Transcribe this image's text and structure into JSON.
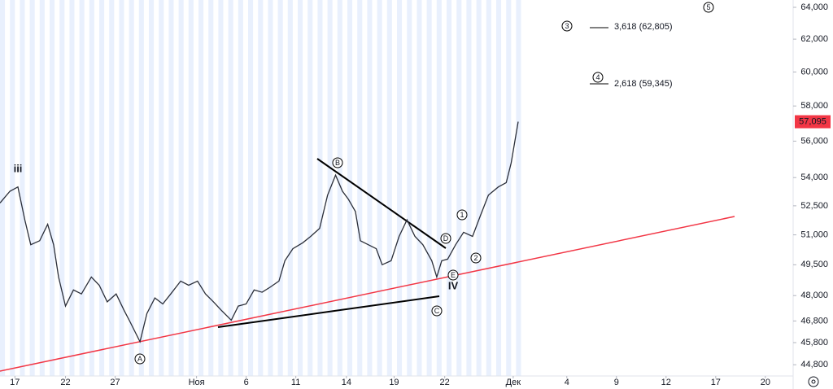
{
  "chart_data": {
    "type": "line",
    "log_scale": true,
    "color": "#2a2e39",
    "x": [
      -1.5,
      -0.5,
      0.3,
      1,
      1.6,
      2.5,
      3.3,
      3.9,
      4.4,
      5.1,
      5.9,
      6.7,
      7.7,
      8.5,
      9.3,
      10.2,
      11,
      11.6,
      12.6,
      13.3,
      14.1,
      14.9,
      15.7,
      16.7,
      17.5,
      18.4,
      19.2,
      20,
      20.8,
      21.8,
      22.5,
      23.3,
      24.1,
      24.9,
      25.7,
      26.6,
      27.2,
      28,
      29,
      29.8,
      30.7,
      31.5,
      32.3,
      33,
      33.6,
      34.3,
      34.8,
      35.6,
      36.4,
      37,
      37.9,
      38.7,
      39.5,
      40.3,
      41.1,
      42,
      42.5,
      43,
      43.6,
      44.4,
      45.2,
      46.1,
      46.9,
      47.7,
      48.7,
      49.5,
      50,
      50.7
    ],
    "values": [
      52650,
      53270,
      53500,
      51770,
      50500,
      50700,
      51540,
      50500,
      48900,
      47500,
      48270,
      48080,
      48900,
      48500,
      47700,
      48080,
      47300,
      46760,
      45840,
      47150,
      47890,
      47600,
      48080,
      48700,
      48500,
      48700,
      48080,
      47700,
      47300,
      46840,
      47500,
      47600,
      48270,
      48160,
      48400,
      48700,
      49700,
      50300,
      50600,
      50920,
      51330,
      53060,
      54130,
      53270,
      52840,
      52200,
      50700,
      50500,
      50300,
      49500,
      49700,
      50920,
      51770,
      50920,
      50500,
      49700,
      48900,
      49700,
      49780,
      50500,
      51130,
      50920,
      51990,
      53060,
      53500,
      53730,
      54800,
      57100
    ],
    "last_price": {
      "value": 57095,
      "label": "57,095"
    },
    "xlim": [
      -1.5,
      78.4
    ],
    "xticks": [
      {
        "value": 0,
        "label": "17"
      },
      {
        "value": 5.1,
        "label": "22"
      },
      {
        "value": 10.1,
        "label": "27"
      },
      {
        "value": 18.3,
        "label": "Ноя"
      },
      {
        "value": 23.3,
        "label": "6"
      },
      {
        "value": 28.3,
        "label": "11"
      },
      {
        "value": 33.4,
        "label": "14"
      },
      {
        "value": 38.2,
        "label": "19"
      },
      {
        "value": 43.3,
        "label": "22"
      },
      {
        "value": 50.2,
        "label": "Дек"
      },
      {
        "value": 55.6,
        "label": "4"
      },
      {
        "value": 60.6,
        "label": "9"
      },
      {
        "value": 65.6,
        "label": "12"
      },
      {
        "value": 70.6,
        "label": "17"
      },
      {
        "value": 75.6,
        "label": "20"
      }
    ],
    "ylim": [
      44300,
      64470
    ],
    "yticks": [
      {
        "value": 44800,
        "label": "44,800"
      },
      {
        "value": 45800,
        "label": "45,800"
      },
      {
        "value": 46800,
        "label": "46,800"
      },
      {
        "value": 48000,
        "label": "48,000"
      },
      {
        "value": 49500,
        "label": "49,500"
      },
      {
        "value": 51000,
        "label": "51,000"
      },
      {
        "value": 52500,
        "label": "52,500"
      },
      {
        "value": 54000,
        "label": "54,000"
      },
      {
        "value": 56000,
        "label": "56,000"
      },
      {
        "value": 58000,
        "label": "58,000"
      },
      {
        "value": 60000,
        "label": "60,000"
      },
      {
        "value": 62000,
        "label": "62,000"
      },
      {
        "value": 64000,
        "label": "64,000"
      }
    ],
    "annotations": [
      "iii",
      "A",
      "B",
      "C",
      "D",
      "E",
      "IV",
      "1",
      "2",
      "3",
      "4",
      "5",
      "3,618 (62,805)",
      "2,618 (59,345)"
    ]
  }
}
